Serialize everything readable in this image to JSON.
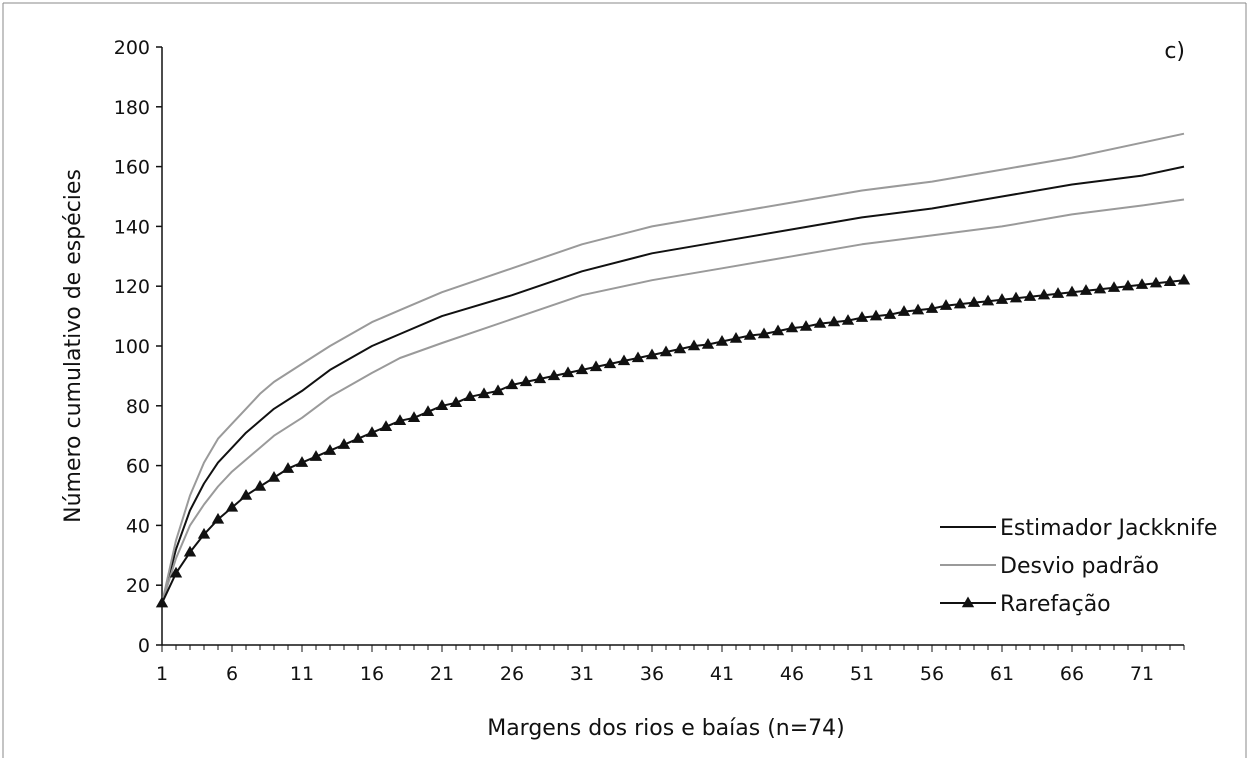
{
  "chart_data": {
    "type": "line",
    "panel_label": "c)",
    "xlabel": "Margens dos rios e baías (n=74)",
    "ylabel": "Número cumulativo de espécies",
    "xlim": [
      1,
      74
    ],
    "ylim": [
      0,
      200
    ],
    "x_ticks": [
      1,
      6,
      11,
      16,
      21,
      26,
      31,
      36,
      41,
      46,
      51,
      56,
      61,
      66,
      71
    ],
    "y_ticks": [
      0,
      20,
      40,
      60,
      80,
      100,
      120,
      140,
      160,
      180,
      200
    ],
    "grid": false,
    "legend_position": "bottom-right",
    "colors": {
      "jackknife": "#111111",
      "desvio": "#9a9a9a",
      "rarefacao": "#111111"
    },
    "series": [
      {
        "name": "Estimador Jackknife",
        "style": "line",
        "points": [
          [
            1,
            14
          ],
          [
            2,
            32
          ],
          [
            3,
            45
          ],
          [
            4,
            54
          ],
          [
            5,
            61
          ],
          [
            6,
            66
          ],
          [
            7,
            71
          ],
          [
            8,
            75
          ],
          [
            9,
            79
          ],
          [
            11,
            85
          ],
          [
            13,
            92
          ],
          [
            16,
            100
          ],
          [
            18,
            104
          ],
          [
            21,
            110
          ],
          [
            26,
            117
          ],
          [
            31,
            125
          ],
          [
            36,
            131
          ],
          [
            41,
            135
          ],
          [
            46,
            139
          ],
          [
            51,
            143
          ],
          [
            56,
            146
          ],
          [
            61,
            150
          ],
          [
            66,
            154
          ],
          [
            71,
            157
          ],
          [
            74,
            160
          ]
        ]
      },
      {
        "name": "Desvio padrão",
        "style": "line",
        "points": [
          [
            1,
            14
          ],
          [
            2,
            35
          ],
          [
            3,
            50
          ],
          [
            4,
            61
          ],
          [
            5,
            69
          ],
          [
            6,
            74
          ],
          [
            7,
            79
          ],
          [
            8,
            84
          ],
          [
            9,
            88
          ],
          [
            11,
            94
          ],
          [
            13,
            100
          ],
          [
            16,
            108
          ],
          [
            18,
            112
          ],
          [
            21,
            118
          ],
          [
            26,
            126
          ],
          [
            31,
            134
          ],
          [
            36,
            140
          ],
          [
            41,
            144
          ],
          [
            46,
            148
          ],
          [
            51,
            152
          ],
          [
            56,
            155
          ],
          [
            61,
            159
          ],
          [
            66,
            163
          ],
          [
            71,
            168
          ],
          [
            74,
            171
          ]
        ]
      },
      {
        "name": "Desvio padrão (inferior)",
        "style": "line",
        "points": [
          [
            1,
            14
          ],
          [
            2,
            29
          ],
          [
            3,
            40
          ],
          [
            4,
            47
          ],
          [
            5,
            53
          ],
          [
            6,
            58
          ],
          [
            7,
            62
          ],
          [
            8,
            66
          ],
          [
            9,
            70
          ],
          [
            11,
            76
          ],
          [
            13,
            83
          ],
          [
            16,
            91
          ],
          [
            18,
            96
          ],
          [
            21,
            101
          ],
          [
            26,
            109
          ],
          [
            31,
            117
          ],
          [
            36,
            122
          ],
          [
            41,
            126
          ],
          [
            46,
            130
          ],
          [
            51,
            134
          ],
          [
            56,
            137
          ],
          [
            61,
            140
          ],
          [
            66,
            144
          ],
          [
            71,
            147
          ],
          [
            74,
            149
          ]
        ]
      },
      {
        "name": "Rarefação",
        "style": "line-markers",
        "points": [
          [
            1,
            14
          ],
          [
            2,
            24
          ],
          [
            3,
            31
          ],
          [
            4,
            37
          ],
          [
            5,
            42
          ],
          [
            6,
            46
          ],
          [
            7,
            50
          ],
          [
            8,
            53
          ],
          [
            9,
            56
          ],
          [
            10,
            59
          ],
          [
            11,
            61
          ],
          [
            12,
            63
          ],
          [
            13,
            65
          ],
          [
            14,
            67
          ],
          [
            15,
            69
          ],
          [
            16,
            71
          ],
          [
            17,
            73
          ],
          [
            18,
            75
          ],
          [
            19,
            76
          ],
          [
            20,
            78
          ],
          [
            21,
            80
          ],
          [
            22,
            81
          ],
          [
            23,
            83
          ],
          [
            24,
            84
          ],
          [
            25,
            85
          ],
          [
            26,
            87
          ],
          [
            27,
            88
          ],
          [
            28,
            89
          ],
          [
            29,
            90
          ],
          [
            30,
            91
          ],
          [
            31,
            92
          ],
          [
            32,
            93
          ],
          [
            33,
            94
          ],
          [
            34,
            95
          ],
          [
            35,
            96
          ],
          [
            36,
            97
          ],
          [
            37,
            98
          ],
          [
            38,
            99
          ],
          [
            39,
            100
          ],
          [
            40,
            100.5
          ],
          [
            41,
            101.5
          ],
          [
            42,
            102.5
          ],
          [
            43,
            103.5
          ],
          [
            44,
            104
          ],
          [
            45,
            105
          ],
          [
            46,
            106
          ],
          [
            47,
            106.5
          ],
          [
            48,
            107.5
          ],
          [
            49,
            108
          ],
          [
            50,
            108.5
          ],
          [
            51,
            109.5
          ],
          [
            52,
            110
          ],
          [
            53,
            110.5
          ],
          [
            54,
            111.5
          ],
          [
            55,
            112
          ],
          [
            56,
            112.5
          ],
          [
            57,
            113.5
          ],
          [
            58,
            114
          ],
          [
            59,
            114.5
          ],
          [
            60,
            115
          ],
          [
            61,
            115.5
          ],
          [
            62,
            116
          ],
          [
            63,
            116.5
          ],
          [
            64,
            117
          ],
          [
            65,
            117.5
          ],
          [
            66,
            118
          ],
          [
            67,
            118.5
          ],
          [
            68,
            119
          ],
          [
            69,
            119.5
          ],
          [
            70,
            120
          ],
          [
            71,
            120.5
          ],
          [
            72,
            121
          ],
          [
            73,
            121.5
          ],
          [
            74,
            122
          ]
        ]
      }
    ],
    "legend": [
      {
        "label": "Estimador Jackknife",
        "key": "jackknife"
      },
      {
        "label": "Desvio padrão",
        "key": "desvio"
      },
      {
        "label": "Rarefação",
        "key": "rarefacao"
      }
    ]
  }
}
